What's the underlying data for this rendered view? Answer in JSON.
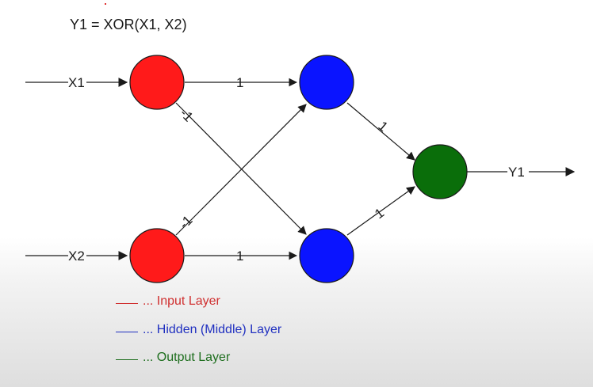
{
  "title": "Y1 = XOR(X1, X2)",
  "inputs": {
    "x1": "X1",
    "x2": "X2"
  },
  "output": "Y1",
  "weights": {
    "x1_h1": "1",
    "x1_h2": "-1",
    "x2_h1": "-1",
    "x2_h2": "1",
    "h1_o": "1",
    "h2_o": "1"
  },
  "legend": {
    "input": "... Input Layer",
    "hidden": "... Hidden (Middle) Layer",
    "output": "... Output Layer"
  },
  "colors": {
    "input_node": "#ff1a1a",
    "hidden_node": "#0a14ff",
    "output_node": "#0a6e0a",
    "legend_input": "#d03030",
    "legend_hidden": "#2030c0",
    "legend_output": "#1e6e1e"
  }
}
